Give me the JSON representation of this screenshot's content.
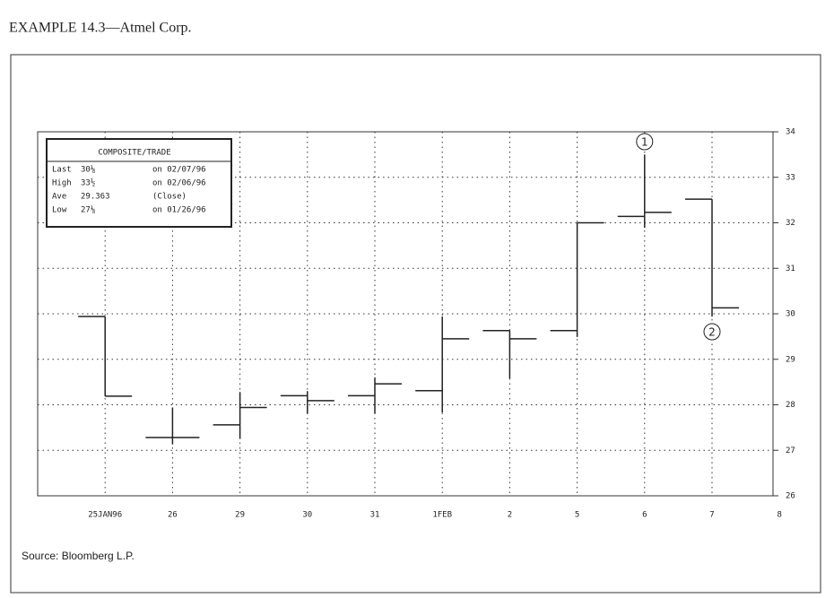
{
  "chart_data": {
    "type": "ohlc",
    "title": "EXAMPLE 14.3—Atmel Corp.",
    "source": "Source: Bloomberg L.P.",
    "categories": [
      "25JAN96",
      "26",
      "29",
      "30",
      "31",
      "1FEB",
      "2",
      "5",
      "6",
      "7",
      "8"
    ],
    "series": [
      {
        "color": "#222222",
        "open": [
          29.94,
          27.28,
          27.56,
          28.2,
          28.2,
          28.31,
          29.63,
          29.63,
          32.14,
          32.52,
          null
        ],
        "high": [
          29.94,
          27.94,
          28.28,
          28.3,
          28.6,
          29.94,
          29.63,
          32.0,
          33.5,
          32.52,
          null
        ],
        "low": [
          28.19,
          27.13,
          27.25,
          27.81,
          27.81,
          27.83,
          28.58,
          29.49,
          31.89,
          29.94,
          null
        ],
        "close": [
          28.19,
          27.28,
          27.94,
          28.09,
          28.46,
          29.45,
          29.45,
          32.0,
          32.23,
          30.13,
          null
        ]
      }
    ],
    "ylim": [
      26,
      34
    ],
    "yticks": [
      26,
      27,
      28,
      29,
      30,
      31,
      32,
      33,
      34
    ],
    "grid": true,
    "info_box": {
      "title": "COMPOSITE/TRADE",
      "rows": [
        [
          "Last",
          "30⅛",
          "on 02/07/96"
        ],
        [
          "High",
          "33½",
          "on 02/06/96"
        ],
        [
          "Ave",
          "29.363",
          "(Close)"
        ],
        [
          "Low",
          "27⅛",
          "on 01/26/96"
        ]
      ]
    },
    "annotations": [
      {
        "text": "1"
      },
      {
        "text": "2"
      }
    ]
  }
}
